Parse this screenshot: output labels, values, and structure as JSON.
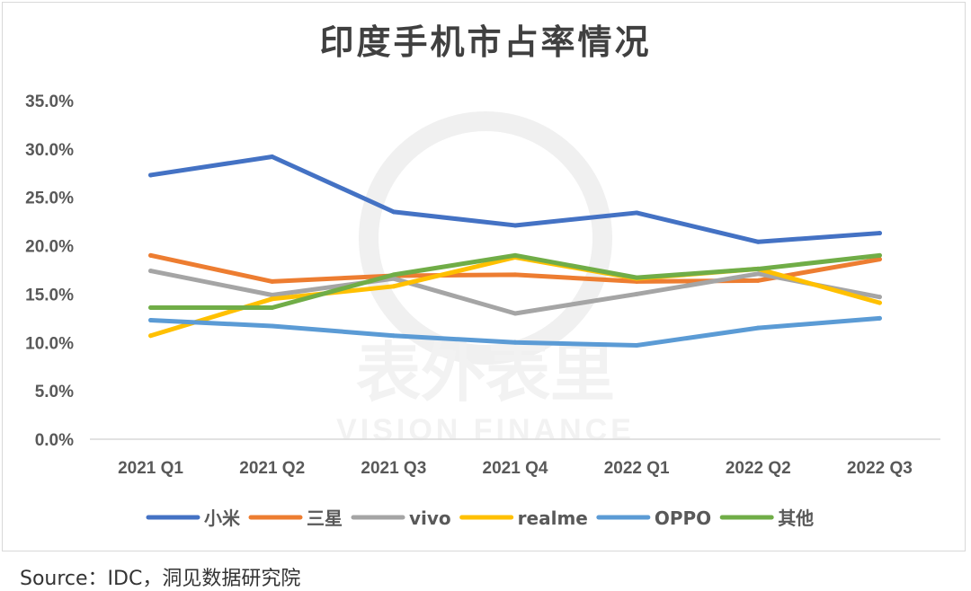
{
  "chart_data": {
    "type": "line",
    "title": "印度手机市占率情况",
    "categories": [
      "2021 Q1",
      "2021 Q2",
      "2021 Q3",
      "2021 Q4",
      "2022 Q1",
      "2022 Q2",
      "2022 Q3"
    ],
    "ylim": [
      0,
      35
    ],
    "yticks": [
      "0.0%",
      "5.0%",
      "10.0%",
      "15.0%",
      "20.0%",
      "25.0%",
      "30.0%",
      "35.0%"
    ],
    "grid": false,
    "legend_position": "bottom",
    "series": [
      {
        "name": "小米",
        "color": "#4472c4",
        "values": [
          27.3,
          29.2,
          23.5,
          22.1,
          23.4,
          20.4,
          21.3
        ]
      },
      {
        "name": "三星",
        "color": "#ed7d31",
        "values": [
          19.0,
          16.3,
          16.9,
          17.0,
          16.3,
          16.4,
          18.6
        ]
      },
      {
        "name": "vivo",
        "color": "#a5a5a5",
        "values": [
          17.4,
          14.9,
          16.6,
          13.0,
          15.0,
          17.1,
          14.7
        ]
      },
      {
        "name": "realme",
        "color": "#ffc000",
        "values": [
          10.7,
          14.5,
          15.8,
          18.8,
          16.6,
          17.6,
          14.1
        ]
      },
      {
        "name": "OPPO",
        "color": "#5b9bd5",
        "values": [
          12.3,
          11.7,
          10.7,
          10.0,
          9.7,
          11.5,
          12.5
        ]
      },
      {
        "name": "其他",
        "color": "#70ad47",
        "values": [
          13.6,
          13.6,
          17.0,
          19.0,
          16.7,
          17.6,
          19.0
        ]
      }
    ]
  },
  "watermark": {
    "cn": "表外表里",
    "en": "VISION FINANCE"
  },
  "source": "Source：IDC，洞见数据研究院"
}
